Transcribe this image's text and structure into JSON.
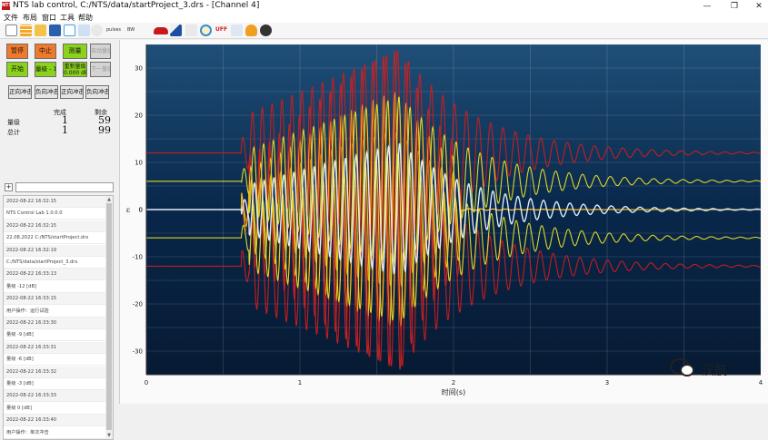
{
  "window": {
    "title": "NTS lab control, C:/NTS/data/startProject_3.drs - [Channel 4]",
    "logo": "NTS",
    "minimize": "—",
    "maximize": "❐",
    "close": "✕"
  },
  "menu": [
    "文件",
    "布局",
    "窗口",
    "工具",
    "帮助"
  ],
  "toolbar": {
    "icons": [
      "new-file-icon",
      "grid-icon",
      "open-folder-icon",
      "save-icon",
      "sine-wave-icon",
      "spectrum-icon",
      "disk-icon",
      "waveform-icon",
      "shock-icon",
      "spectrum-view-icon",
      "red-car-icon",
      "mountain-icon",
      "tools-icon",
      "zoom-search-icon",
      "uff-icon",
      "music-icon",
      "headphones-icon",
      "film-reel-icon"
    ],
    "small_labels": [
      "pulses",
      "BW"
    ],
    "uff": "UFF"
  },
  "controls": {
    "pause": "暂停",
    "stop": "中止",
    "measure": "测量",
    "auto_level": "自动量级",
    "start": "开始",
    "level_adjust": "量级 - 1",
    "restart_level": "重新量级",
    "restart_value": "0.000 dB",
    "level_step": "下一量级",
    "shock_buttons": [
      "正向冲击",
      "负向冲击",
      "正向冲击",
      "负向冲击"
    ]
  },
  "stats": {
    "done_header": "完成",
    "remaining_header": "剩余",
    "level_label": "量级",
    "level_done": "1",
    "level_remaining": "59",
    "total_label": "总计",
    "total_done": "1",
    "total_remaining": "99"
  },
  "filter": {
    "plus": "+",
    "value": ""
  },
  "log": [
    "2022-08-22 16:32:15",
    "NTS Control Lab 1.0.0.0",
    "2022-08-22 16:32:15",
    "22.08.2022 C:/NTS/startProject.drs",
    "2022-08-22 16:32:19",
    "C:/NTS/data/startProject_3.drs",
    "2022-08-22 16:33:13",
    "量级                      -12 [dB]",
    "2022-08-22 16:33:15",
    "用户操作：运行试验",
    "2022-08-22 16:33:30",
    "量级                      -9 [dB]",
    "2022-08-22 16:33:31",
    "量级                      -6 [dB]",
    "2022-08-22 16:33:32",
    "量级                      -3 [dB]",
    "2022-08-22 16:33:33",
    "量级                      0 [dB]",
    "2022-08-22 16:33:40",
    "用户操作：单次冲击"
  ],
  "watermark": {
    "text": "汉航",
    "icon": "wechat-icon"
  },
  "colors": {
    "accent_orange": "#f07a2c",
    "accent_green": "#8ad21c",
    "trace_white": "#e8f2ff",
    "trace_yellow": "#e8e024",
    "trace_red": "#d01c1c",
    "trace_orange": "#f0a020"
  },
  "chart_data": {
    "type": "line",
    "xlabel": "时间(s)",
    "ylabel": "ε",
    "xlim": [
      0,
      4
    ],
    "ylim": [
      -35,
      35
    ],
    "xticks": [
      "0",
      "1",
      "2",
      "3",
      "4"
    ],
    "yticks": [
      "-30",
      "-20",
      "-10",
      "0",
      "10",
      "20",
      "30"
    ],
    "grid": true,
    "series": [
      {
        "color": "#e8f2ff",
        "offset": 0,
        "peak": 14
      },
      {
        "color": "#e8e024",
        "offset": 6,
        "peak": 18
      },
      {
        "color": "#e8e024",
        "offset": -6,
        "peak": 18
      },
      {
        "color": "#d01c1c",
        "offset": 12,
        "peak": 22
      },
      {
        "color": "#d01c1c",
        "offset": -12,
        "peak": 22
      },
      {
        "color": "#f0a020",
        "offset": 0,
        "peak": 17
      },
      {
        "color": "#f0d020",
        "offset": 0,
        "peak": 25
      },
      {
        "color": "#c82424",
        "offset": 0,
        "peak": 33
      }
    ],
    "signal_start": 0.62,
    "signal_peak": 1.65,
    "signal_end": 3.2
  }
}
